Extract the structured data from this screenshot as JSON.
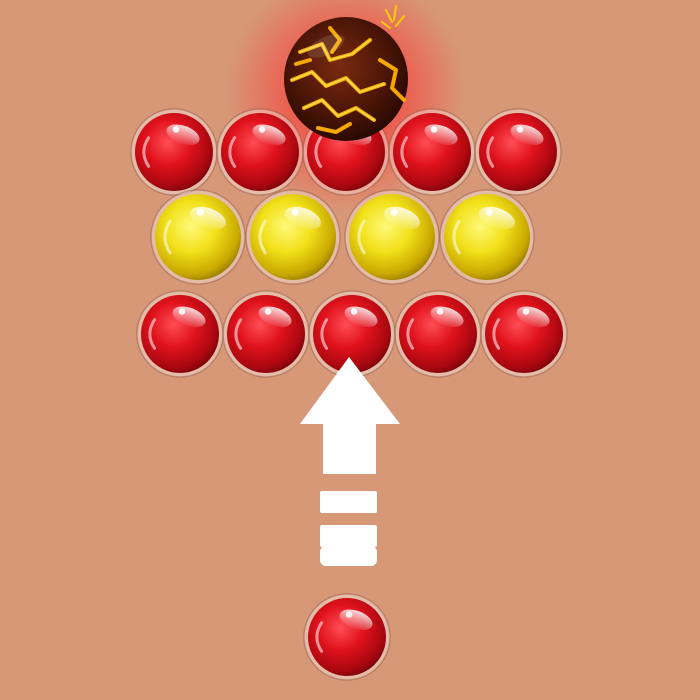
{
  "game": {
    "type": "bubble-shooter",
    "background_color": "#d79878",
    "colors": {
      "red": "#d0101a",
      "yellow": "#e8d000"
    },
    "fire_ball": {
      "icon": "lava-fire-ball",
      "glow_color": "#ff2020"
    },
    "grid": [
      [
        "red",
        "red",
        "red",
        "red",
        "red"
      ],
      [
        "yellow",
        "yellow",
        "yellow",
        "yellow"
      ],
      [
        "red",
        "red",
        "red",
        "red",
        "red"
      ]
    ],
    "shooter": {
      "ball_color": "red",
      "aim_indicator": "up-arrow-dashed"
    }
  }
}
